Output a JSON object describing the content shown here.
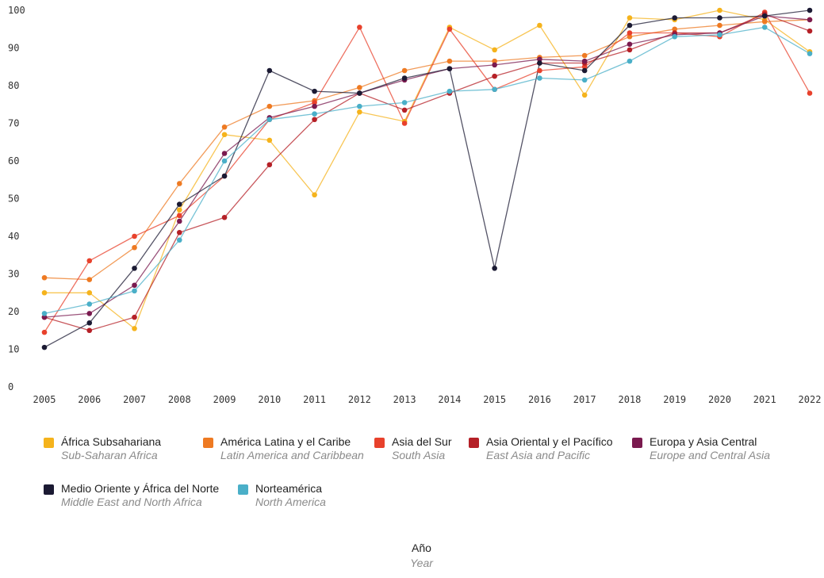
{
  "chart_data": {
    "type": "line",
    "title": "",
    "xlabel": "Año",
    "xlabel_en": "Year",
    "ylabel": "",
    "ylim": [
      0,
      100
    ],
    "yticks": [
      0,
      10,
      20,
      30,
      40,
      50,
      60,
      70,
      80,
      90,
      100
    ],
    "grid": false,
    "legend_position": "bottom",
    "x": [
      "2005",
      "2006",
      "2007",
      "2008",
      "2009",
      "2010",
      "2011",
      "2012",
      "2013",
      "2014",
      "2015",
      "2016",
      "2017",
      "2018",
      "2019",
      "2020",
      "2021",
      "2022"
    ],
    "series": [
      {
        "name": "África Subsahariana",
        "name_en": "Sub-Saharan Africa",
        "color": "#F5B31C",
        "values": [
          25,
          25,
          15.5,
          47,
          67,
          65.5,
          51,
          73,
          70.5,
          95.5,
          89.5,
          96,
          77.5,
          98,
          97.5,
          100,
          97.5,
          89
        ]
      },
      {
        "name": "América Latina y el Caribe",
        "name_en": "Latin America and Caribbean",
        "color": "#EE7A22",
        "values": [
          29,
          28.5,
          37,
          54,
          69,
          74.5,
          76,
          79.5,
          84,
          86.5,
          86.5,
          87.5,
          88,
          93,
          95,
          96,
          97,
          97.5
        ]
      },
      {
        "name": "Asia del Sur",
        "name_en": "South Asia",
        "color": "#E8412C",
        "values": [
          14.5,
          33.5,
          40,
          45.5,
          56,
          71,
          75.5,
          95.5,
          70,
          95,
          79,
          84,
          85,
          94,
          94,
          93,
          99.5,
          78
        ]
      },
      {
        "name": "Asia Oriental y el Pacífico",
        "name_en": "East Asia and Pacific",
        "color": "#B52027",
        "values": [
          18.5,
          15,
          18.5,
          41,
          45,
          59,
          71,
          78,
          73.5,
          78,
          82.5,
          86,
          86,
          89.5,
          94,
          94,
          99,
          94.5
        ]
      },
      {
        "name": "Europa y Asia Central",
        "name_en": "Europe and Central Asia",
        "color": "#7A1A4F",
        "values": [
          18.5,
          19.5,
          27,
          44,
          62,
          71.5,
          74.5,
          78,
          81.5,
          84.5,
          85.5,
          87,
          86.5,
          91,
          93.5,
          94,
          98.5,
          97.5
        ]
      },
      {
        "name": "Medio Oriente y África del Norte",
        "name_en": "Middle East and North Africa",
        "color": "#1B1A33",
        "values": [
          10.5,
          17,
          31.5,
          48.5,
          56,
          84,
          78.5,
          78,
          82,
          84.5,
          31.5,
          86,
          84,
          96,
          98,
          98,
          98.5,
          100
        ]
      },
      {
        "name": "Norteamérica",
        "name_en": "North America",
        "color": "#4AAFC8",
        "values": [
          19.5,
          22,
          25.5,
          39,
          60,
          71,
          72.5,
          74.5,
          75.5,
          78.5,
          79,
          82,
          81.5,
          86.5,
          93,
          93.5,
          95.5,
          88.5
        ]
      }
    ]
  }
}
